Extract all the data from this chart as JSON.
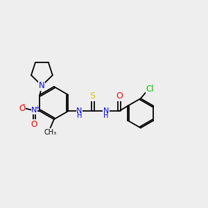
{
  "bg_color": "#eeeeee",
  "atom_colors": {
    "C": "#000000",
    "N": "#0000ff",
    "O": "#ff0000",
    "S": "#cccc00",
    "Cl": "#00bb00",
    "H": "#000000"
  },
  "figsize": [
    3.0,
    3.0
  ],
  "dpi": 100,
  "lw": 1.3
}
